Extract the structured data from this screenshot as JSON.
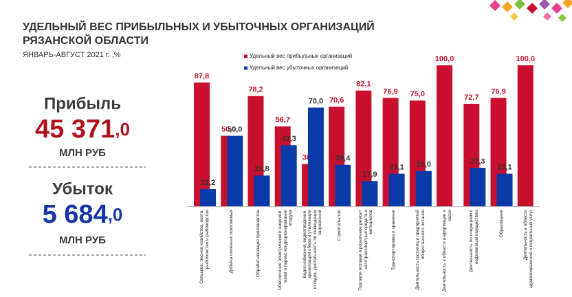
{
  "summary": {
    "profit": {
      "label": "Прибыль",
      "value_main": "45 371",
      "value_decimal": ",0",
      "unit": "МЛН РУБ"
    },
    "loss": {
      "label": "Убыток",
      "value_main": "5 684",
      "value_decimal": ",0",
      "unit": "МЛН РУБ"
    }
  },
  "chart_data": {
    "type": "bar",
    "title": "УДЕЛЬНЫЙ ВЕС ПРИБЫЛЬНЫХ И УБЫТОЧНЫХ ОРГАНИЗАЦИЙ РЯЗАНСКОЙ ОБЛАСТИ",
    "subtitle": "ЯНВАРЬ-АВГУСТ 2021 г. ,%",
    "categories": [
      "Сельское, лесное хозяйство, охота, рыболовство и рыбоводство",
      "Добыча полезных ископаемых",
      "Обрабатывающие производства",
      "Обеспечение электрической энергией, газом и паром; кондиционирование воздуха",
      "Водоснабжение; водоотведение, организация сбора и утилизации отходов, деятельность по ликвидации загрязнений",
      "Строительство",
      "Торговля оптовая и розничная; ремонт автотранспортных средств и мотоциклов",
      "Транспортировка и хранение",
      "Деятельность гостиниц и предприятий общественного питания",
      "Деятельность в области информации и связи",
      "Деятельность по операциям с недвижимым имуществом",
      "Образование",
      "Деятельность в области здравоохранения и социальных услуг"
    ],
    "series": [
      {
        "name": "Удельный вес прибыльных организаций",
        "color": "#c8102e",
        "values": [
          87.8,
          50.0,
          78.2,
          56.7,
          30.0,
          70.6,
          82.1,
          76.9,
          75.0,
          100.0,
          72.7,
          76.9,
          100.0
        ],
        "value_labels": [
          "87,8",
          "50,0",
          "78,2",
          "56,7",
          "30,0",
          "70,6",
          "82,1",
          "76,9",
          "75,0",
          "100,0",
          "72,7",
          "76,9",
          "100,0"
        ],
        "label_color": "#c8102e"
      },
      {
        "name": "Удельный вес убыточных организаций",
        "color": "#0a3aa8",
        "values": [
          12.2,
          50.0,
          21.8,
          43.3,
          70.0,
          29.4,
          17.9,
          23.1,
          25.0,
          null,
          27.3,
          23.1,
          null
        ],
        "value_labels": [
          "12,2",
          "50,0",
          "21,8",
          "43,3",
          "70,0",
          "29,4",
          "17,9",
          "23,1",
          "25,0",
          null,
          "27,3",
          "23,1",
          null
        ],
        "label_color": "#333333"
      }
    ],
    "ylim": [
      0,
      100
    ],
    "legend": "top-left"
  }
}
